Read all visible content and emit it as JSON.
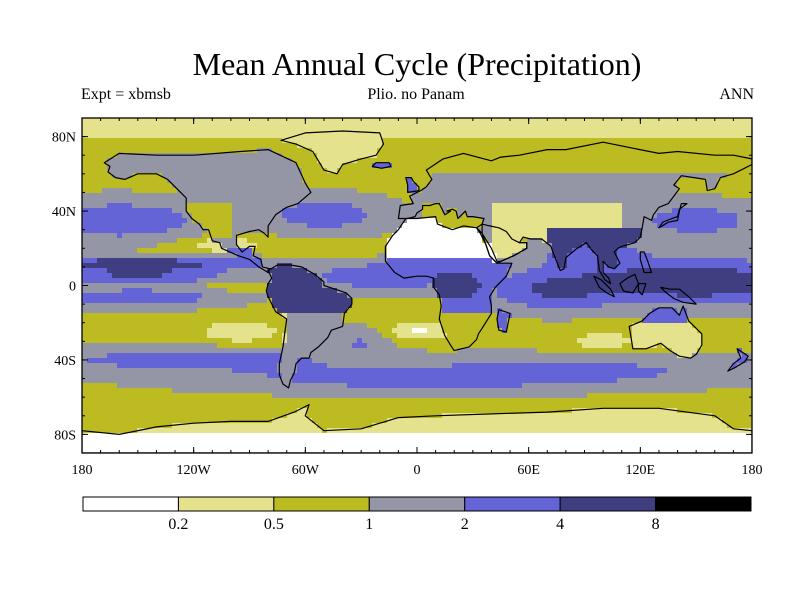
{
  "figure": {
    "title": "Mean Annual Cycle (Precipitation)",
    "experiment_label": "Expt = xbmsb",
    "subtitle": "Plio. no Panam",
    "season": "ANN"
  },
  "axes": {
    "lat_ticks": [
      {
        "value": 80,
        "label": "80N"
      },
      {
        "value": 40,
        "label": "40N"
      },
      {
        "value": 0,
        "label": "0"
      },
      {
        "value": -40,
        "label": "40S"
      },
      {
        "value": -80,
        "label": "80S"
      }
    ],
    "lon_ticks": [
      {
        "value": -180,
        "label": "180"
      },
      {
        "value": -120,
        "label": "120W"
      },
      {
        "value": -60,
        "label": "60W"
      },
      {
        "value": 0,
        "label": "0"
      },
      {
        "value": 60,
        "label": "60E"
      },
      {
        "value": 120,
        "label": "120E"
      },
      {
        "value": 180,
        "label": "180"
      }
    ],
    "lon_range": [
      -180,
      180
    ],
    "lat_range": [
      -90,
      90
    ]
  },
  "colorbar": {
    "colors": [
      "#ffffff",
      "#e4e28c",
      "#bcbb22",
      "#9496a6",
      "#6464d6",
      "#3e3e80",
      "#000000"
    ],
    "labels": [
      "0.2",
      "0.5",
      "1",
      "2",
      "4",
      "8"
    ]
  },
  "chart_data": {
    "type": "heatmap",
    "title": "Mean Annual Cycle (Precipitation)",
    "x_range": [
      -180,
      180
    ],
    "y_range": [
      -90,
      90
    ],
    "levels": [
      0.2,
      0.5,
      1,
      2,
      4,
      8
    ]
  }
}
